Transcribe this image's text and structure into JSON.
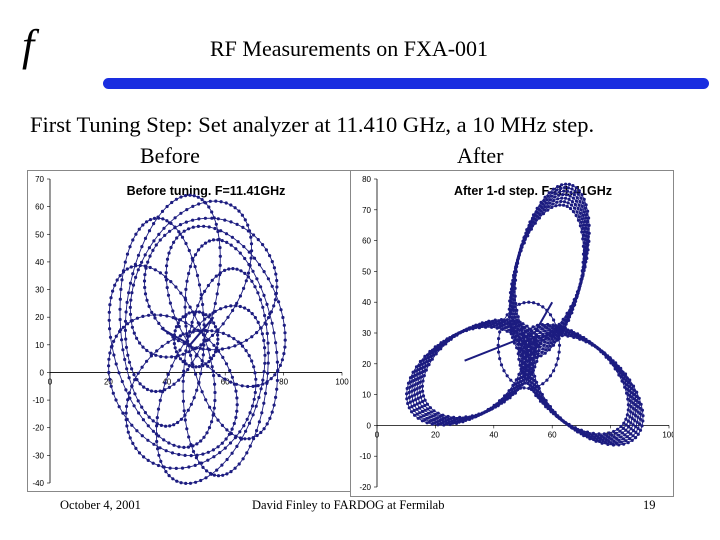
{
  "logo": "f",
  "slide_title": "RF Measurements on FXA-001",
  "subtitle": "First Tuning Step: Set analyzer at 11.410 GHz, a 10 MHz step.",
  "labels": {
    "before": "Before",
    "after": "After"
  },
  "footer": {
    "date": "October 4, 2001",
    "presenter": "David Finley to FARDOG at Fermilab",
    "page": "19"
  },
  "colors": {
    "accent_bar": "#1a2ee0",
    "trace": "#1c1c80"
  },
  "chart_data": [
    {
      "type": "scatter",
      "title": "Before tuning. F=11.41GHz",
      "xlim": [
        0,
        100
      ],
      "ylim": [
        -40,
        70
      ],
      "x_ticks": [
        "0",
        "20",
        "40",
        "60",
        "80",
        "100"
      ],
      "y_ticks": [
        "70",
        "60",
        "50",
        "40",
        "30",
        "20",
        "10",
        "0",
        "-10",
        "-20",
        "-30",
        "-40"
      ],
      "y_tick_values": [
        70,
        60,
        50,
        40,
        30,
        20,
        10,
        0,
        -10,
        -20,
        -30,
        -40
      ],
      "x_tick_values": [
        0,
        20,
        40,
        60,
        80,
        100
      ],
      "pattern": {
        "center": [
          50,
          12
        ],
        "loops": 11,
        "loop_radius": 28,
        "loop_offset": 22,
        "points_per_loop": 64,
        "inner_circle": {
          "center": [
            50,
            12
          ],
          "radius": 10
        },
        "spoke": [
          [
            38,
            16
          ],
          [
            48,
            10
          ],
          [
            56,
            20
          ]
        ]
      }
    },
    {
      "type": "scatter",
      "title": "After 1-d step. F=11.41GHz",
      "xlim": [
        0,
        100
      ],
      "ylim": [
        -20,
        80
      ],
      "x_ticks": [
        "0",
        "20",
        "40",
        "60",
        "80",
        "100"
      ],
      "y_ticks": [
        "80",
        "70",
        "60",
        "50",
        "40",
        "30",
        "20",
        "10",
        "0",
        "-10",
        "-20"
      ],
      "y_tick_values": [
        80,
        70,
        60,
        50,
        40,
        30,
        20,
        10,
        0,
        -10,
        -20
      ],
      "x_tick_values": [
        0,
        20,
        40,
        60,
        80,
        100
      ],
      "pattern": {
        "center": [
          52,
          26
        ],
        "lobes": [
          {
            "angle_deg": 70,
            "dist": 22
          },
          {
            "angle_deg": 200,
            "dist": 22
          },
          {
            "angle_deg": 330,
            "dist": 22
          }
        ],
        "lobe_radius_a": 26,
        "lobe_radius_b": 14,
        "copies": 7,
        "points_per_loop": 56,
        "inner_circle": {
          "center": [
            52,
            26
          ],
          "radius": 14
        },
        "spoke": [
          [
            30,
            21
          ],
          [
            54,
            30
          ],
          [
            60,
            40
          ]
        ]
      }
    }
  ]
}
